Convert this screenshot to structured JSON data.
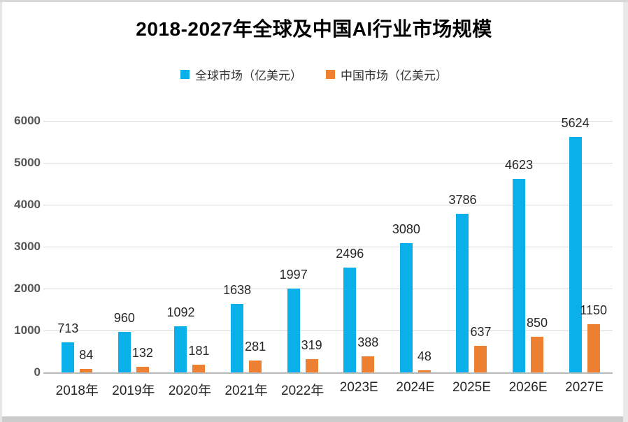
{
  "chart_data": {
    "type": "bar",
    "title": "2018-2027年全球及中国AI行业市场规模",
    "categories": [
      "2018年",
      "2019年",
      "2020年",
      "2021年",
      "2022年",
      "2023E",
      "2024E",
      "2025E",
      "2026E",
      "2027E"
    ],
    "series": [
      {
        "name": "全球市场（亿美元）",
        "color": "#0AB0E9",
        "values": [
          713,
          960,
          1092,
          1638,
          1997,
          2496,
          3080,
          3786,
          4623,
          5624
        ]
      },
      {
        "name": "中国市场（亿美元）",
        "color": "#EE8032",
        "values": [
          84,
          132,
          181,
          281,
          319,
          388,
          48,
          637,
          850,
          1150
        ]
      }
    ],
    "ylim": [
      0,
      6000
    ],
    "y_ticks": [
      0,
      1000,
      2000,
      3000,
      4000,
      5000,
      6000
    ],
    "grid": true,
    "gridline_color": "#D9D9D9",
    "legend_position": "top",
    "data_labels": true
  }
}
